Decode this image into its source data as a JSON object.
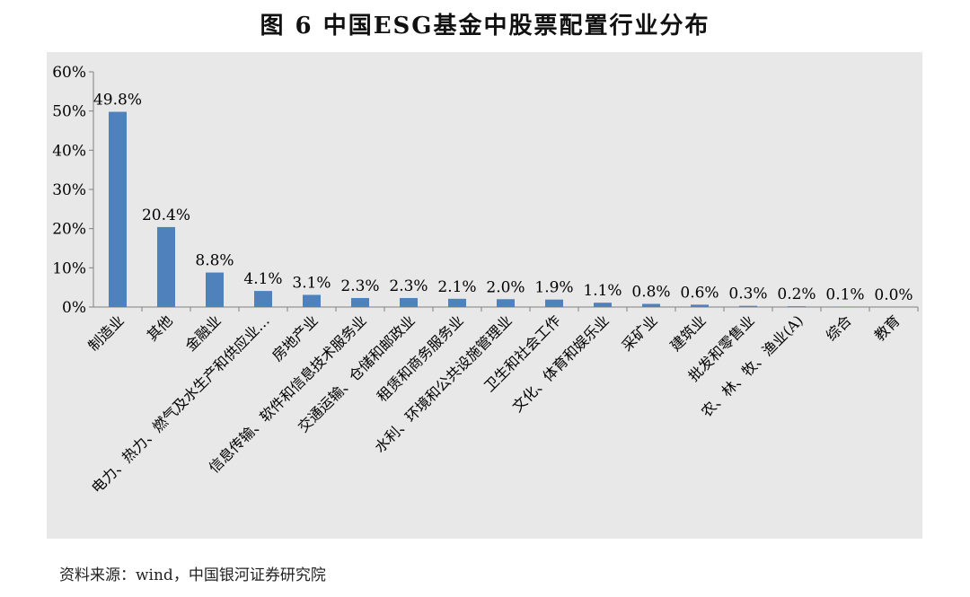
{
  "title": "图 6 中国ESG基金中股票配置行业分布",
  "source": "资料来源：wind，中国银河证券研究院",
  "colors": {
    "bar": "#4F81BD",
    "plot_bg": "#E8E8E8",
    "axis": "#7F7F7F",
    "text": "#000000"
  },
  "chart_data": {
    "type": "bar",
    "title": "",
    "xlabel": "",
    "ylabel": "",
    "ylim": [
      0,
      60
    ],
    "y_ticks": [
      "0%",
      "10%",
      "20%",
      "30%",
      "40%",
      "50%",
      "60%"
    ],
    "grid": false,
    "categories": [
      "制造业",
      "其他",
      "金融业",
      "电力、热力、燃气及水生产和供应业…",
      "房地产业",
      "信息传输、软件和信息技术服务业",
      "交通运输、仓储和邮政业",
      "租赁和商务服务业",
      "水利、环境和公共设施管理业",
      "卫生和社会工作",
      "文化、体育和娱乐业",
      "采矿业",
      "建筑业",
      "批发和零售业",
      "农、林、牧、渔业(A)",
      "综合",
      "教育"
    ],
    "values": [
      49.8,
      20.4,
      8.8,
      4.1,
      3.1,
      2.3,
      2.3,
      2.1,
      2.0,
      1.9,
      1.1,
      0.8,
      0.6,
      0.3,
      0.2,
      0.1,
      0.0
    ],
    "data_labels": [
      "49.8%",
      "20.4%",
      "8.8%",
      "4.1%",
      "3.1%",
      "2.3%",
      "2.3%",
      "2.1%",
      "2.0%",
      "1.9%",
      "1.1%",
      "0.8%",
      "0.6%",
      "0.3%",
      "0.2%",
      "0.1%",
      "0.0%"
    ]
  }
}
